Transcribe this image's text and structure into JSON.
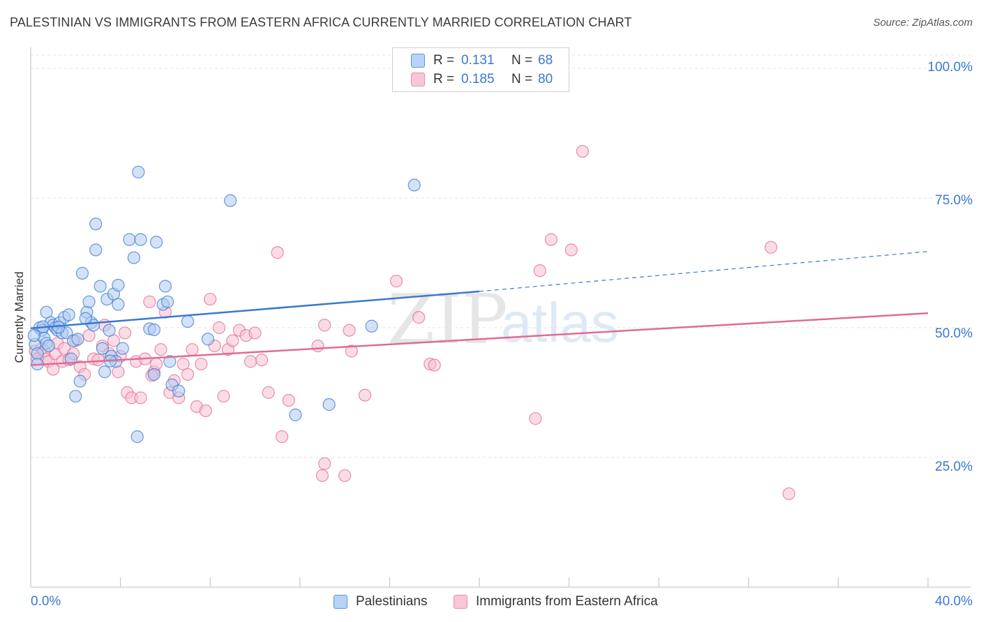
{
  "title": "PALESTINIAN VS IMMIGRANTS FROM EASTERN AFRICA CURRENTLY MARRIED CORRELATION CHART",
  "source": "Source: ZipAtlas.com",
  "watermark": {
    "zip": "ZIP",
    "atlas": "atlas"
  },
  "legend_top": {
    "rows": [
      {
        "r_label": "R =",
        "r_value": "0.131",
        "n_label": "N =",
        "n_value": "68",
        "color": "#5b93e0",
        "fill": "#b8d3f5"
      },
      {
        "r_label": "R =",
        "r_value": "0.185",
        "n_label": "N =",
        "n_value": "80",
        "color": "#e58fad",
        "fill": "#f8c6d6"
      }
    ]
  },
  "legend_bottom": {
    "items": [
      {
        "label": "Palestinians",
        "color": "#5b93e0",
        "fill": "#b8d3f5"
      },
      {
        "label": "Immigrants from Eastern Africa",
        "color": "#e58fad",
        "fill": "#f8c6d6"
      }
    ]
  },
  "chart_data": {
    "type": "scatter",
    "title": "PALESTINIAN VS IMMIGRANTS FROM EASTERN AFRICA CURRENTLY MARRIED CORRELATION CHART",
    "xlabel": "",
    "ylabel": "Currently Married",
    "xlim": [
      0,
      40
    ],
    "ylim": [
      0,
      100
    ],
    "x_tick_labels": [
      "0.0%",
      "40.0%"
    ],
    "y_ticks": [
      25,
      50,
      75,
      100
    ],
    "y_tick_labels": [
      "25.0%",
      "50.0%",
      "75.0%",
      "100.0%"
    ],
    "grid": true,
    "series": [
      {
        "name": "Palestinians",
        "color": "#3a78d0",
        "fill": "#aecbf0",
        "r": 0.131,
        "n": 68,
        "trend": {
          "x0": 0,
          "y0": 49.9,
          "x1": 20,
          "y1": 57.0,
          "x_dash_end": 40,
          "y_dash_end": 64.7
        },
        "points": [
          [
            0.2,
            46.8
          ],
          [
            0.3,
            45.0
          ],
          [
            0.3,
            43.0
          ],
          [
            0.4,
            50.0
          ],
          [
            0.5,
            49.5
          ],
          [
            0.6,
            48.0
          ],
          [
            0.7,
            53.0
          ],
          [
            0.7,
            47.0
          ],
          [
            0.8,
            46.5
          ],
          [
            0.9,
            51.0
          ],
          [
            1.0,
            50.5
          ],
          [
            1.1,
            50.0
          ],
          [
            1.2,
            49.5
          ],
          [
            1.3,
            51.0
          ],
          [
            1.4,
            49.0
          ],
          [
            1.5,
            52.0
          ],
          [
            1.6,
            49.0
          ],
          [
            1.7,
            52.5
          ],
          [
            1.8,
            44.0
          ],
          [
            1.9,
            47.5
          ],
          [
            2.0,
            36.8
          ],
          [
            2.1,
            47.8
          ],
          [
            2.2,
            39.7
          ],
          [
            2.3,
            60.5
          ],
          [
            2.5,
            53.0
          ],
          [
            2.6,
            55.0
          ],
          [
            2.7,
            51.0
          ],
          [
            2.8,
            50.5
          ],
          [
            2.9,
            70.0
          ],
          [
            2.9,
            65.0
          ],
          [
            3.1,
            58.0
          ],
          [
            3.2,
            46.0
          ],
          [
            3.3,
            41.5
          ],
          [
            3.4,
            55.5
          ],
          [
            3.5,
            49.5
          ],
          [
            3.6,
            44.5
          ],
          [
            3.7,
            56.5
          ],
          [
            3.8,
            43.5
          ],
          [
            3.9,
            58.2
          ],
          [
            3.9,
            54.5
          ],
          [
            4.1,
            46.0
          ],
          [
            4.4,
            67.0
          ],
          [
            4.6,
            63.5
          ],
          [
            4.8,
            80.0
          ],
          [
            4.9,
            67.0
          ],
          [
            5.3,
            49.8
          ],
          [
            5.5,
            49.6
          ],
          [
            5.6,
            66.5
          ],
          [
            5.9,
            54.5
          ],
          [
            6.0,
            58.0
          ],
          [
            6.1,
            55.0
          ],
          [
            6.2,
            43.5
          ],
          [
            6.3,
            39.0
          ],
          [
            6.6,
            37.8
          ],
          [
            7.0,
            51.2
          ],
          [
            7.9,
            47.8
          ],
          [
            8.9,
            74.5
          ],
          [
            11.8,
            33.2
          ],
          [
            13.3,
            35.2
          ],
          [
            15.2,
            50.3
          ],
          [
            17.1,
            77.5
          ],
          [
            4.75,
            29.0
          ],
          [
            5.5,
            41.0
          ],
          [
            0.55,
            50.2
          ],
          [
            1.25,
            50.1
          ],
          [
            2.45,
            51.8
          ],
          [
            3.55,
            43.6
          ],
          [
            0.15,
            48.5
          ]
        ]
      },
      {
        "name": "Immigrants from Eastern Africa",
        "color": "#e06b95",
        "fill": "#f6bfd2",
        "r": 0.185,
        "n": 80,
        "trend": {
          "x0": 0,
          "y0": 42.8,
          "x1": 40,
          "y1": 52.8
        },
        "points": [
          [
            0.2,
            45.5
          ],
          [
            0.3,
            44.0
          ],
          [
            0.5,
            46.0
          ],
          [
            0.6,
            45.5
          ],
          [
            0.7,
            44.0
          ],
          [
            0.8,
            43.5
          ],
          [
            1.0,
            42.0
          ],
          [
            1.1,
            45.0
          ],
          [
            1.2,
            47.0
          ],
          [
            1.4,
            43.5
          ],
          [
            1.5,
            46.0
          ],
          [
            1.7,
            43.8
          ],
          [
            1.9,
            45.0
          ],
          [
            2.0,
            47.5
          ],
          [
            2.2,
            42.5
          ],
          [
            2.4,
            41.0
          ],
          [
            2.6,
            48.5
          ],
          [
            2.8,
            44.0
          ],
          [
            3.0,
            43.8
          ],
          [
            3.2,
            46.5
          ],
          [
            3.3,
            50.5
          ],
          [
            3.5,
            45.0
          ],
          [
            3.7,
            47.5
          ],
          [
            3.9,
            41.5
          ],
          [
            4.0,
            44.5
          ],
          [
            4.2,
            49.0
          ],
          [
            4.3,
            37.5
          ],
          [
            4.5,
            36.5
          ],
          [
            4.7,
            43.5
          ],
          [
            4.9,
            36.5
          ],
          [
            5.1,
            44.0
          ],
          [
            5.3,
            55.0
          ],
          [
            5.5,
            41.5
          ],
          [
            5.6,
            43.0
          ],
          [
            5.8,
            45.8
          ],
          [
            6.0,
            53.0
          ],
          [
            6.2,
            37.5
          ],
          [
            6.4,
            39.8
          ],
          [
            6.6,
            36.5
          ],
          [
            6.8,
            43.0
          ],
          [
            7.0,
            41.0
          ],
          [
            7.2,
            45.8
          ],
          [
            7.4,
            34.8
          ],
          [
            7.6,
            43.0
          ],
          [
            7.8,
            34.0
          ],
          [
            8.0,
            55.5
          ],
          [
            8.2,
            46.5
          ],
          [
            8.4,
            50.0
          ],
          [
            8.6,
            36.8
          ],
          [
            8.8,
            45.8
          ],
          [
            9.0,
            47.5
          ],
          [
            9.3,
            49.5
          ],
          [
            9.6,
            48.5
          ],
          [
            9.8,
            43.5
          ],
          [
            10.0,
            49.0
          ],
          [
            10.3,
            43.8
          ],
          [
            10.6,
            37.5
          ],
          [
            11.0,
            64.5
          ],
          [
            11.2,
            29.0
          ],
          [
            11.5,
            36.0
          ],
          [
            12.8,
            46.5
          ],
          [
            13.1,
            50.5
          ],
          [
            13.0,
            21.5
          ],
          [
            13.1,
            23.8
          ],
          [
            14.0,
            21.5
          ],
          [
            14.2,
            49.5
          ],
          [
            14.3,
            45.5
          ],
          [
            14.9,
            37.0
          ],
          [
            16.3,
            59.0
          ],
          [
            17.3,
            52.0
          ],
          [
            17.8,
            43.0
          ],
          [
            18.0,
            42.8
          ],
          [
            22.5,
            32.5
          ],
          [
            22.7,
            61.0
          ],
          [
            23.2,
            67.0
          ],
          [
            24.1,
            65.0
          ],
          [
            24.6,
            84.0
          ],
          [
            33.0,
            65.5
          ],
          [
            33.8,
            18.0
          ],
          [
            5.4,
            40.8
          ]
        ]
      }
    ]
  }
}
